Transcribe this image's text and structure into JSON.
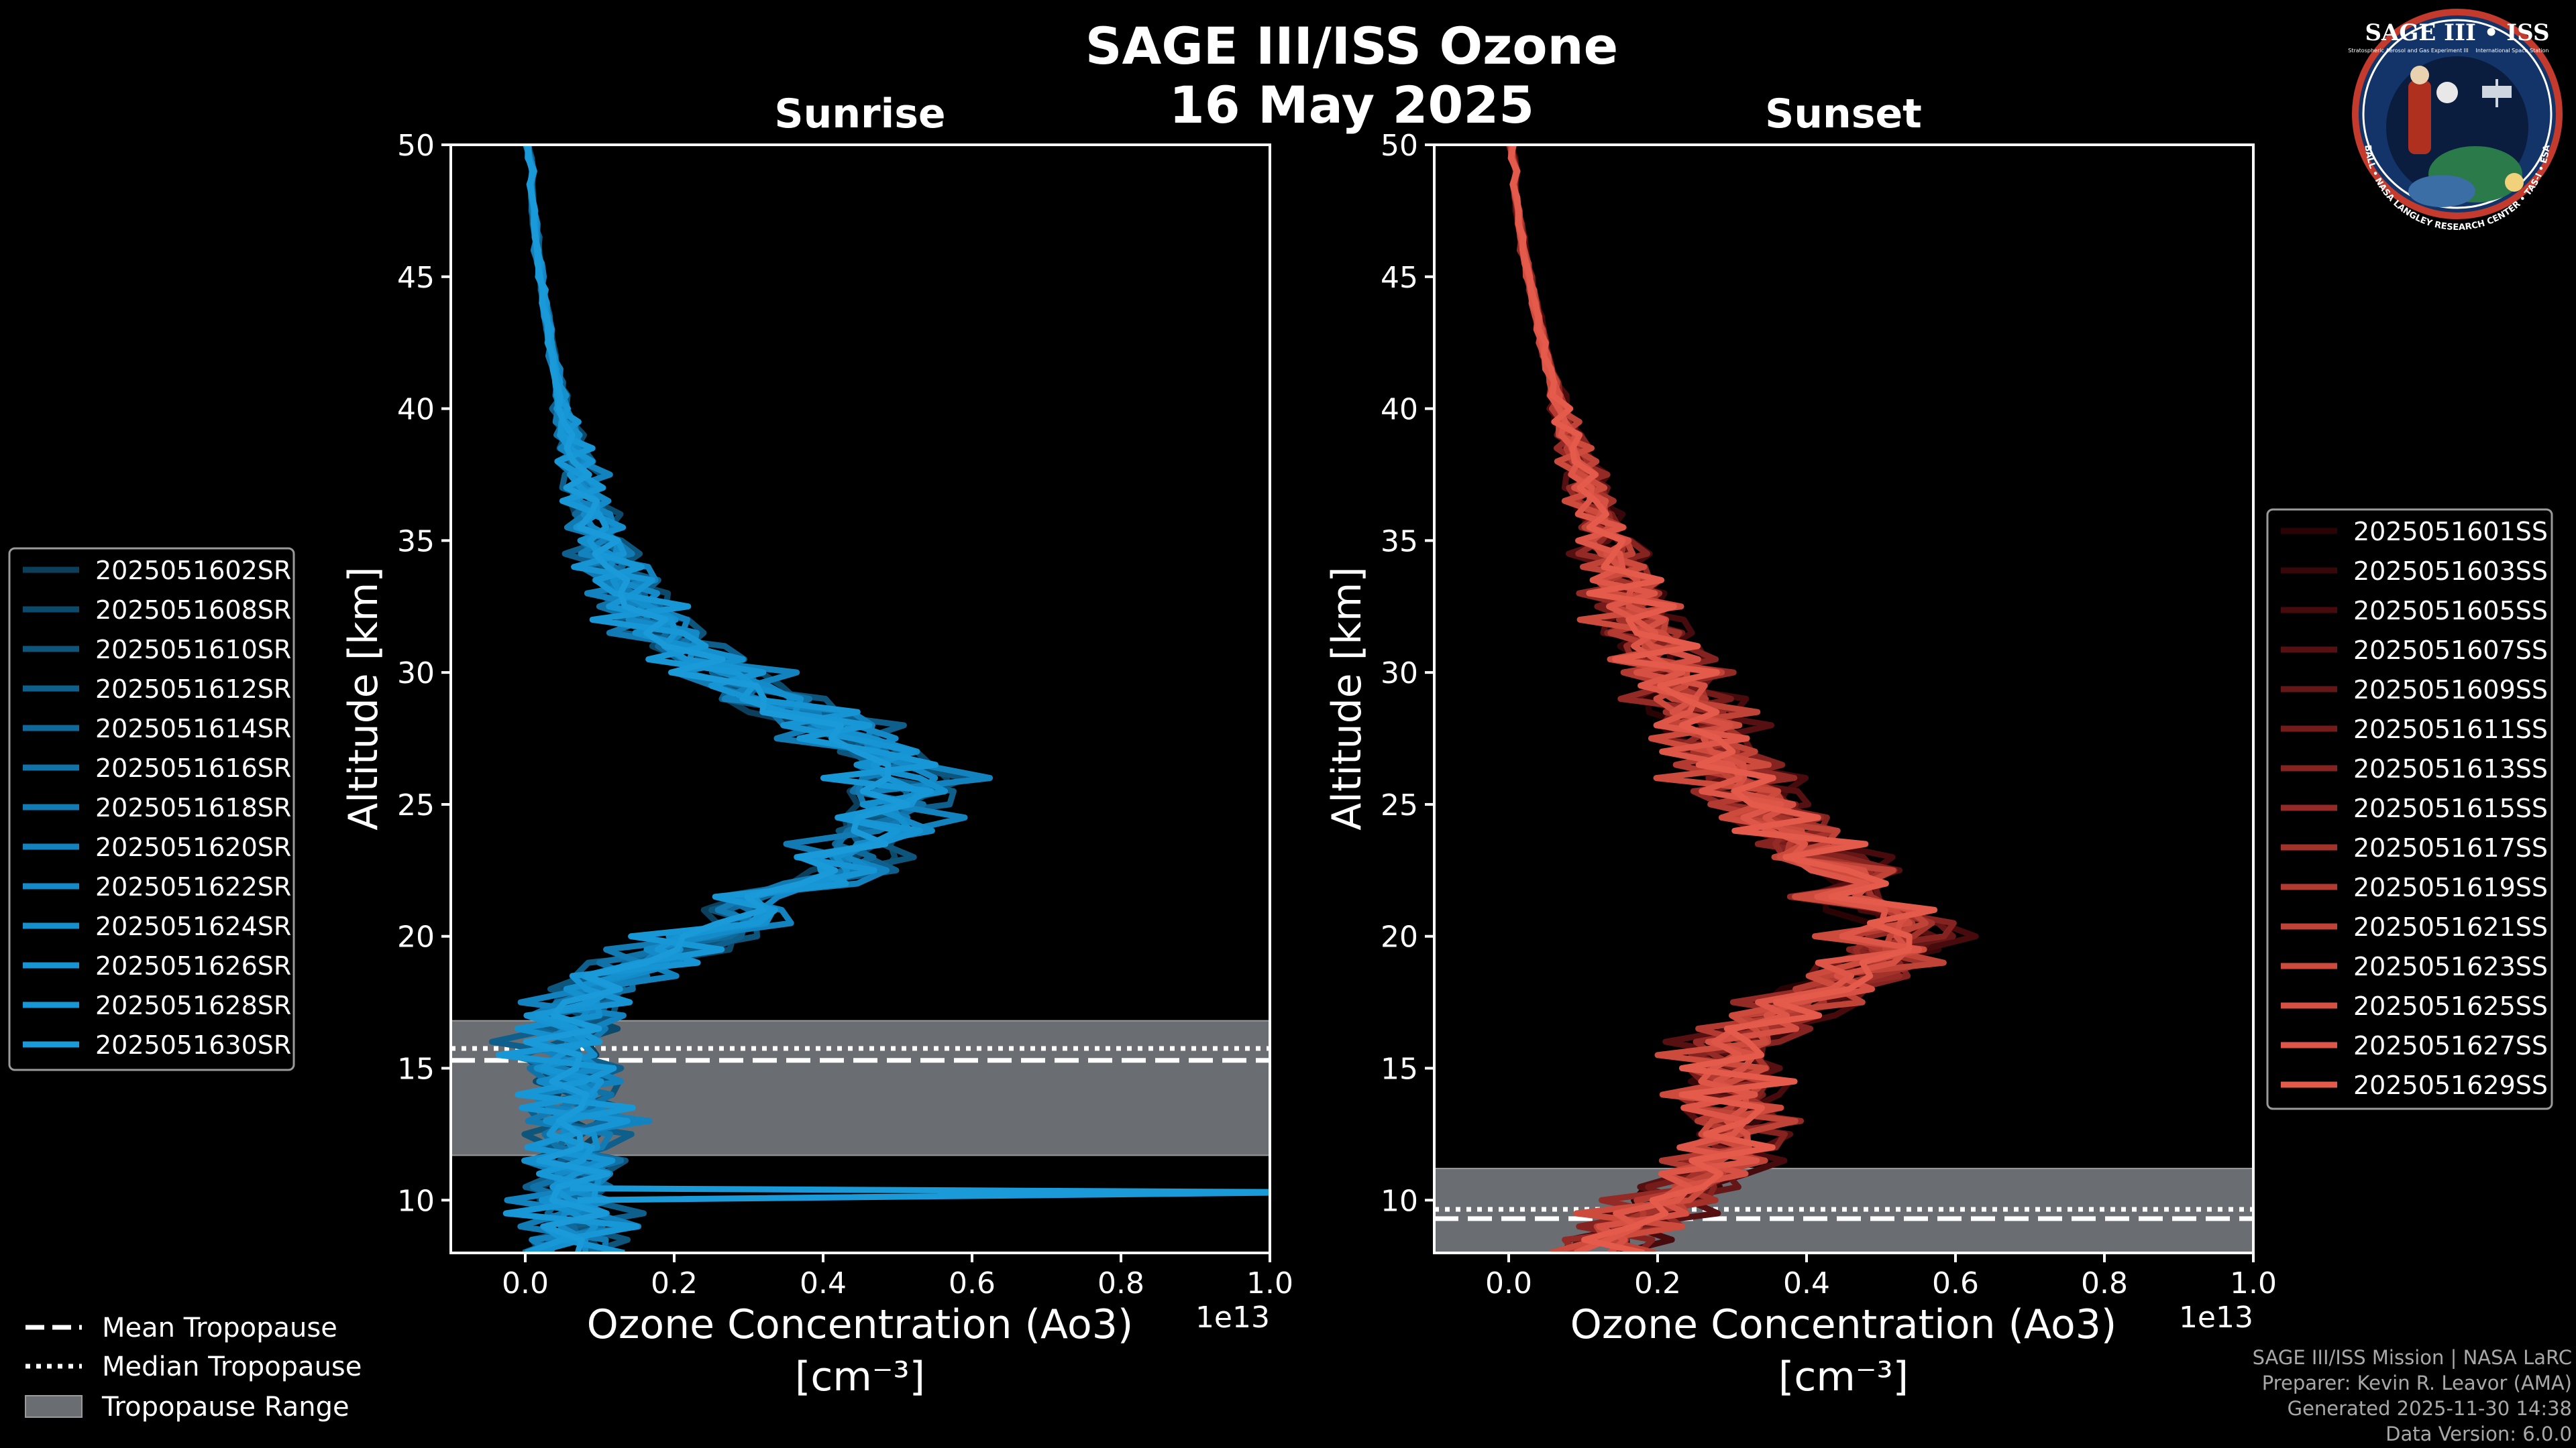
{
  "figure": {
    "title_line1": "SAGE III/ISS Ozone",
    "title_line2": "16 May 2025",
    "colors": {
      "background": "#000000",
      "sunrise": "#1a9ad6",
      "sunset": "#e05a4b",
      "tropo_band": "#6a6d72"
    }
  },
  "chart_data": [
    {
      "type": "line",
      "title": "Sunrise",
      "xlabel": "Ozone Concentration (Ao3)",
      "xunit": "[cm⁻³]",
      "x_offset_label": "1e13",
      "ylabel": "Altitude [km]",
      "xlim": [
        -0.1,
        1.0
      ],
      "ylim": [
        8,
        50
      ],
      "xticks": [
        0.0,
        0.2,
        0.4,
        0.6,
        0.8,
        1.0
      ],
      "xtick_labels": [
        "0.0",
        "0.2",
        "0.4",
        "0.6",
        "0.8",
        "1.0"
      ],
      "yticks": [
        10,
        15,
        20,
        25,
        30,
        35,
        40,
        45,
        50
      ],
      "base_profile": {
        "alt": [
          8,
          9,
          10,
          11,
          12,
          13,
          14,
          15,
          16,
          17,
          18,
          19,
          20,
          21,
          22,
          23,
          24,
          25,
          26,
          27,
          28,
          29,
          30,
          31,
          32,
          33,
          34,
          35,
          36,
          38,
          40,
          42,
          44,
          46,
          48,
          50
        ],
        "value": [
          0.06,
          0.07,
          0.06,
          0.07,
          0.06,
          0.07,
          0.07,
          0.06,
          0.05,
          0.06,
          0.09,
          0.16,
          0.24,
          0.31,
          0.38,
          0.44,
          0.48,
          0.5,
          0.51,
          0.48,
          0.41,
          0.33,
          0.26,
          0.21,
          0.17,
          0.14,
          0.12,
          0.105,
          0.09,
          0.07,
          0.05,
          0.037,
          0.026,
          0.016,
          0.01,
          0.005
        ]
      },
      "tropopause": {
        "mean_km": 15.3,
        "median_km": 15.75,
        "range_km": [
          11.7,
          16.8
        ]
      },
      "spike_profiles": [
        {
          "alt": 10.3,
          "value": 1.0
        }
      ],
      "series": [
        {
          "name": "2025051602SR",
          "color": "#0b3f5c"
        },
        {
          "name": "2025051608SR",
          "color": "#0c4a6c"
        },
        {
          "name": "2025051610SR",
          "color": "#0e557c"
        },
        {
          "name": "2025051612SR",
          "color": "#0f5f8c"
        },
        {
          "name": "2025051614SR",
          "color": "#10699b"
        },
        {
          "name": "2025051616SR",
          "color": "#1172a8"
        },
        {
          "name": "2025051618SR",
          "color": "#127bb4"
        },
        {
          "name": "2025051620SR",
          "color": "#1383bf"
        },
        {
          "name": "2025051622SR",
          "color": "#148ac8"
        },
        {
          "name": "2025051624SR",
          "color": "#1590cf"
        },
        {
          "name": "2025051626SR",
          "color": "#1794d3"
        },
        {
          "name": "2025051628SR",
          "color": "#1897d6"
        },
        {
          "name": "2025051630SR",
          "color": "#1a9ad8"
        }
      ]
    },
    {
      "type": "line",
      "title": "Sunset",
      "xlabel": "Ozone Concentration (Ao3)",
      "xunit": "[cm⁻³]",
      "x_offset_label": "1e13",
      "ylabel": "Altitude [km]",
      "xlim": [
        -0.1,
        1.0
      ],
      "ylim": [
        8,
        50
      ],
      "xticks": [
        0.0,
        0.2,
        0.4,
        0.6,
        0.8,
        1.0
      ],
      "xtick_labels": [
        "0.0",
        "0.2",
        "0.4",
        "0.6",
        "0.8",
        "1.0"
      ],
      "yticks": [
        10,
        15,
        20,
        25,
        30,
        35,
        40,
        45,
        50
      ],
      "base_profile": {
        "alt": [
          8,
          9,
          10,
          11,
          12,
          13,
          14,
          15,
          16,
          17,
          18,
          19,
          20,
          21,
          22,
          23,
          24,
          25,
          26,
          27,
          28,
          29,
          30,
          31,
          32,
          33,
          34,
          35,
          36,
          38,
          40,
          42,
          44,
          46,
          48,
          50
        ],
        "value": [
          0.12,
          0.16,
          0.22,
          0.27,
          0.3,
          0.31,
          0.3,
          0.3,
          0.31,
          0.36,
          0.44,
          0.5,
          0.53,
          0.51,
          0.47,
          0.42,
          0.38,
          0.34,
          0.31,
          0.28,
          0.26,
          0.24,
          0.22,
          0.2,
          0.18,
          0.165,
          0.15,
          0.135,
          0.12,
          0.095,
          0.07,
          0.05,
          0.035,
          0.02,
          0.01,
          0.005
        ]
      },
      "tropopause": {
        "mean_km": 9.3,
        "median_km": 9.65,
        "range_km": [
          8.0,
          11.2
        ]
      },
      "spike_profiles": [],
      "series": [
        {
          "name": "2025051601SS",
          "color": "#2a0405"
        },
        {
          "name": "2025051603SS",
          "color": "#380709"
        },
        {
          "name": "2025051605SS",
          "color": "#470b0d"
        },
        {
          "name": "2025051607SS",
          "color": "#561011"
        },
        {
          "name": "2025051609SS",
          "color": "#651616"
        },
        {
          "name": "2025051611SS",
          "color": "#751c1b"
        },
        {
          "name": "2025051613SS",
          "color": "#852320"
        },
        {
          "name": "2025051615SS",
          "color": "#942a25"
        },
        {
          "name": "2025051617SS",
          "color": "#a3322b"
        },
        {
          "name": "2025051619SS",
          "color": "#b23a31"
        },
        {
          "name": "2025051621SS",
          "color": "#c04337"
        },
        {
          "name": "2025051623SS",
          "color": "#cc4b3d"
        },
        {
          "name": "2025051625SS",
          "color": "#d65143"
        },
        {
          "name": "2025051627SS",
          "color": "#de5647"
        },
        {
          "name": "2025051629SS",
          "color": "#e45b4b"
        }
      ]
    }
  ],
  "tropopause_legend": {
    "mean": "Mean Tropopause",
    "median": "Median Tropopause",
    "range": "Tropopause Range"
  },
  "badge": {
    "title": "SAGE III • ISS",
    "ring_text": "BALL • NASA LANGLEY RESEARCH CENTER • TAS-I • ESA",
    "subtitle_left": "Stratospheric Aerosol and Gas Experiment III",
    "subtitle_right": "International Space Station"
  },
  "footer": {
    "line1": "SAGE III/ISS Mission | NASA LaRC",
    "line2": "Preparer: Kevin R. Leavor (AMA)",
    "line3": "Generated 2025-11-30 14:38",
    "line4": "Data Version: 6.0.0"
  }
}
